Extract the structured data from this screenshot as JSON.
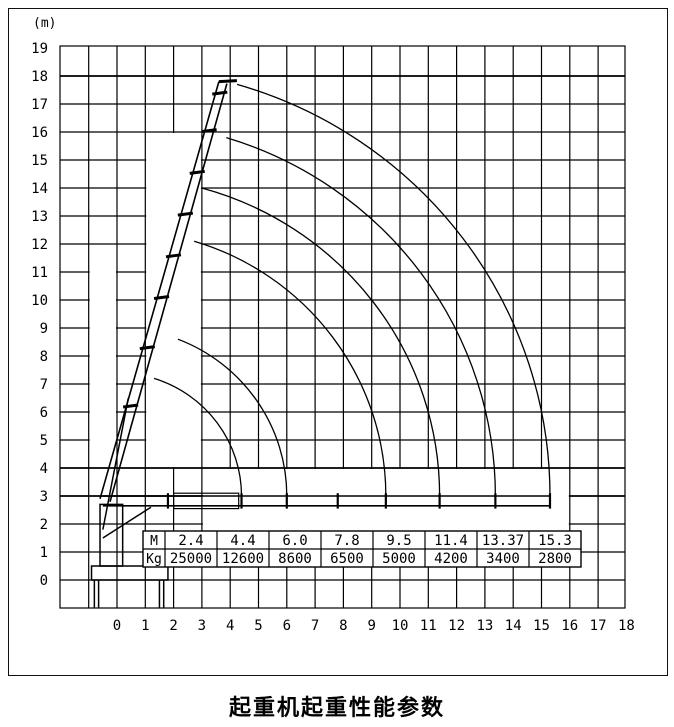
{
  "chart_data": {
    "type": "diagram",
    "unit_label": "(m)",
    "x_range": [
      -1,
      18
    ],
    "y_range": [
      -1,
      19
    ],
    "x_ticks": [
      0,
      1,
      2,
      3,
      4,
      5,
      6,
      7,
      8,
      9,
      10,
      11,
      12,
      13,
      14,
      15,
      16,
      17,
      18
    ],
    "y_ticks": [
      0,
      1,
      2,
      3,
      4,
      5,
      6,
      7,
      8,
      9,
      10,
      11,
      12,
      13,
      14,
      15,
      16,
      17,
      18,
      19
    ],
    "boom_pivot": [
      0,
      3
    ],
    "reach_arcs": [
      {
        "radius_m": 4.4,
        "tip_height": 7.2
      },
      {
        "radius_m": 6.0,
        "tip_height": 8.6
      },
      {
        "radius_m": 9.5,
        "tip_height": 12.1
      },
      {
        "radius_m": 11.4,
        "tip_height": 14.0
      },
      {
        "radius_m": 13.37,
        "tip_height": 15.8
      },
      {
        "radius_m": 15.3,
        "tip_height": 17.7
      }
    ],
    "load_table": {
      "row_labels": [
        "M",
        "Kg"
      ],
      "columns": [
        {
          "radius": "2.4",
          "load": "25000"
        },
        {
          "radius": "4.4",
          "load": "12600"
        },
        {
          "radius": "6.0",
          "load": "8600"
        },
        {
          "radius": "7.8",
          "load": "6500"
        },
        {
          "radius": "9.5",
          "load": "5000"
        },
        {
          "radius": "11.4",
          "load": "4200"
        },
        {
          "radius": "13.37",
          "load": "3400"
        },
        {
          "radius": "15.3",
          "load": "2800"
        }
      ]
    }
  },
  "caption": "起重机起重性能参数",
  "colors": {
    "line": "#000000",
    "background": "#ffffff"
  }
}
